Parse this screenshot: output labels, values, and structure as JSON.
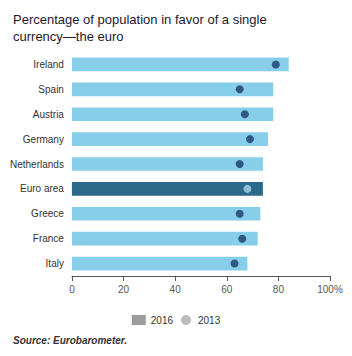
{
  "chart_data": {
    "type": "bar",
    "orientation": "horizontal",
    "title": "Percentage of population in favor of a single\ncurrency—the euro",
    "annotations": [
      "Source: Eurobarometer."
    ],
    "categories": [
      "Ireland",
      "Spain",
      "Austria",
      "Germany",
      "Netherlands",
      "Euro area",
      "Greece",
      "France",
      "Italy"
    ],
    "series": [
      {
        "name": "2016",
        "type": "bar",
        "color": "#9B9B9B",
        "colors": [
          "#87CEEB",
          "#87CEEB",
          "#87CEEB",
          "#87CEEB",
          "#87CEEB",
          "#2B6A8A",
          "#87CEEB",
          "#87CEEB",
          "#87CEEB"
        ],
        "values": [
          84,
          78,
          78,
          76,
          74,
          74,
          73,
          72,
          68
        ]
      },
      {
        "name": "2013",
        "type": "scatter",
        "marker": "circle",
        "color": "#AAAAAA",
        "colors": [
          "#1B3A6B",
          "#1B3A6B",
          "#1B3A6B",
          "#1B3A6B",
          "#1B3A6B",
          "#A8D4E8",
          "#1B3A6B",
          "#1B3A6B",
          "#1B3A6B"
        ],
        "values": [
          79,
          65,
          67,
          69,
          65,
          68,
          65,
          66,
          63
        ]
      }
    ],
    "xlim": [
      0,
      100
    ],
    "xticks": [
      0,
      20,
      40,
      60,
      80,
      {
        "value": 100,
        "label": "100%"
      }
    ],
    "grid": false,
    "legend": "bottom"
  }
}
